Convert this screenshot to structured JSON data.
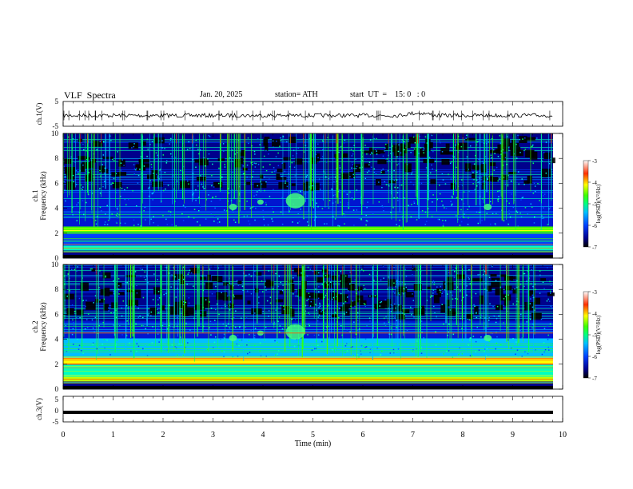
{
  "header": {
    "title": "VLF  Spectra",
    "date": "Jan. 20, 2025",
    "station": "station= ATH",
    "start": "start  UT  =    15: 0   : 0"
  },
  "chart_data": [
    {
      "type": "line",
      "panel": "ch1-waveform",
      "ylabel": "ch.1(V)",
      "ylim": [
        -5,
        5
      ],
      "yticks": [
        "5",
        "-5"
      ],
      "description_of_trace": "noisy waveform near zero",
      "xlim": [
        0,
        10
      ]
    },
    {
      "type": "heatmap",
      "panel": "ch1-spectrogram",
      "ylabel": [
        "ch.1",
        "Frequency  (kHz)"
      ],
      "ylim": [
        0,
        10
      ],
      "yticks": [
        "0",
        "2",
        "4",
        "6",
        "8",
        "10"
      ],
      "xlim": [
        0,
        10
      ],
      "colorbar": {
        "label": "log(PSD)(V²/Hz)",
        "ticks": [
          "-3",
          "-4",
          "-5",
          "-6",
          "-7"
        ]
      }
    },
    {
      "type": "heatmap",
      "panel": "ch2-spectrogram",
      "ylabel": [
        "ch.2",
        "Frequency  (kHz)"
      ],
      "ylim": [
        0,
        10
      ],
      "yticks": [
        "0",
        "2",
        "4",
        "6",
        "8",
        "10"
      ],
      "xlim": [
        0,
        10
      ],
      "colorbar": {
        "label": "log(PSD)(V²/Hz)",
        "ticks": [
          "-3",
          "-4",
          "-5",
          "-6",
          "-7"
        ]
      }
    },
    {
      "type": "line",
      "panel": "ch3-waveform",
      "ylabel": "ch.3(V)",
      "ylim": [
        -5,
        5
      ],
      "yticks": [
        "5",
        "0",
        "-5"
      ],
      "xlim": [
        0,
        10
      ],
      "xlabel": "Time  (min)",
      "xticks": [
        "0",
        "1",
        "2",
        "3",
        "4",
        "5",
        "6",
        "7",
        "8",
        "9",
        "10"
      ]
    }
  ]
}
